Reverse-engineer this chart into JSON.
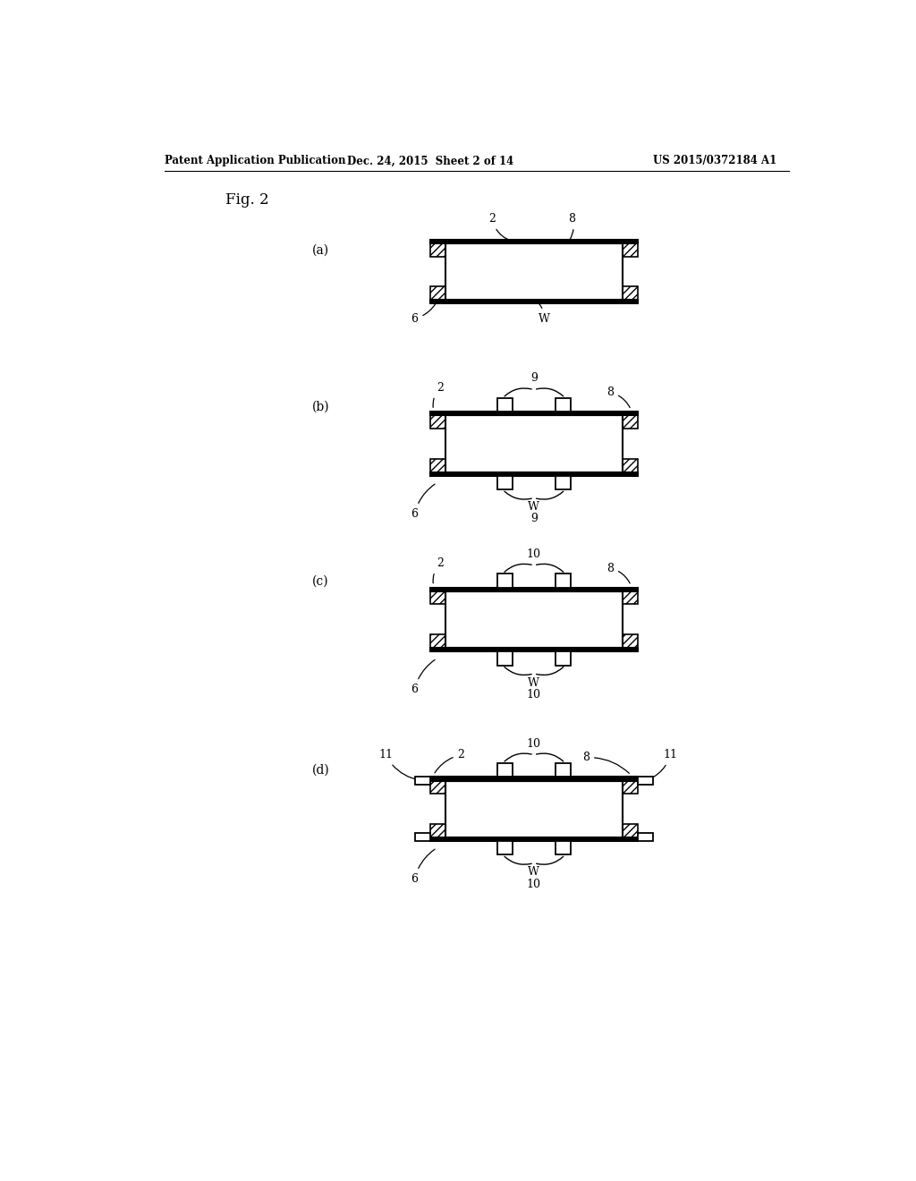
{
  "bg_color": "#ffffff",
  "header_left": "Patent Application Publication",
  "header_mid": "Dec. 24, 2015  Sheet 2 of 14",
  "header_right": "US 2015/0372184 A1",
  "fig_label": "Fig. 2",
  "line_color": "#000000",
  "page_width": 10.24,
  "page_height": 13.2
}
